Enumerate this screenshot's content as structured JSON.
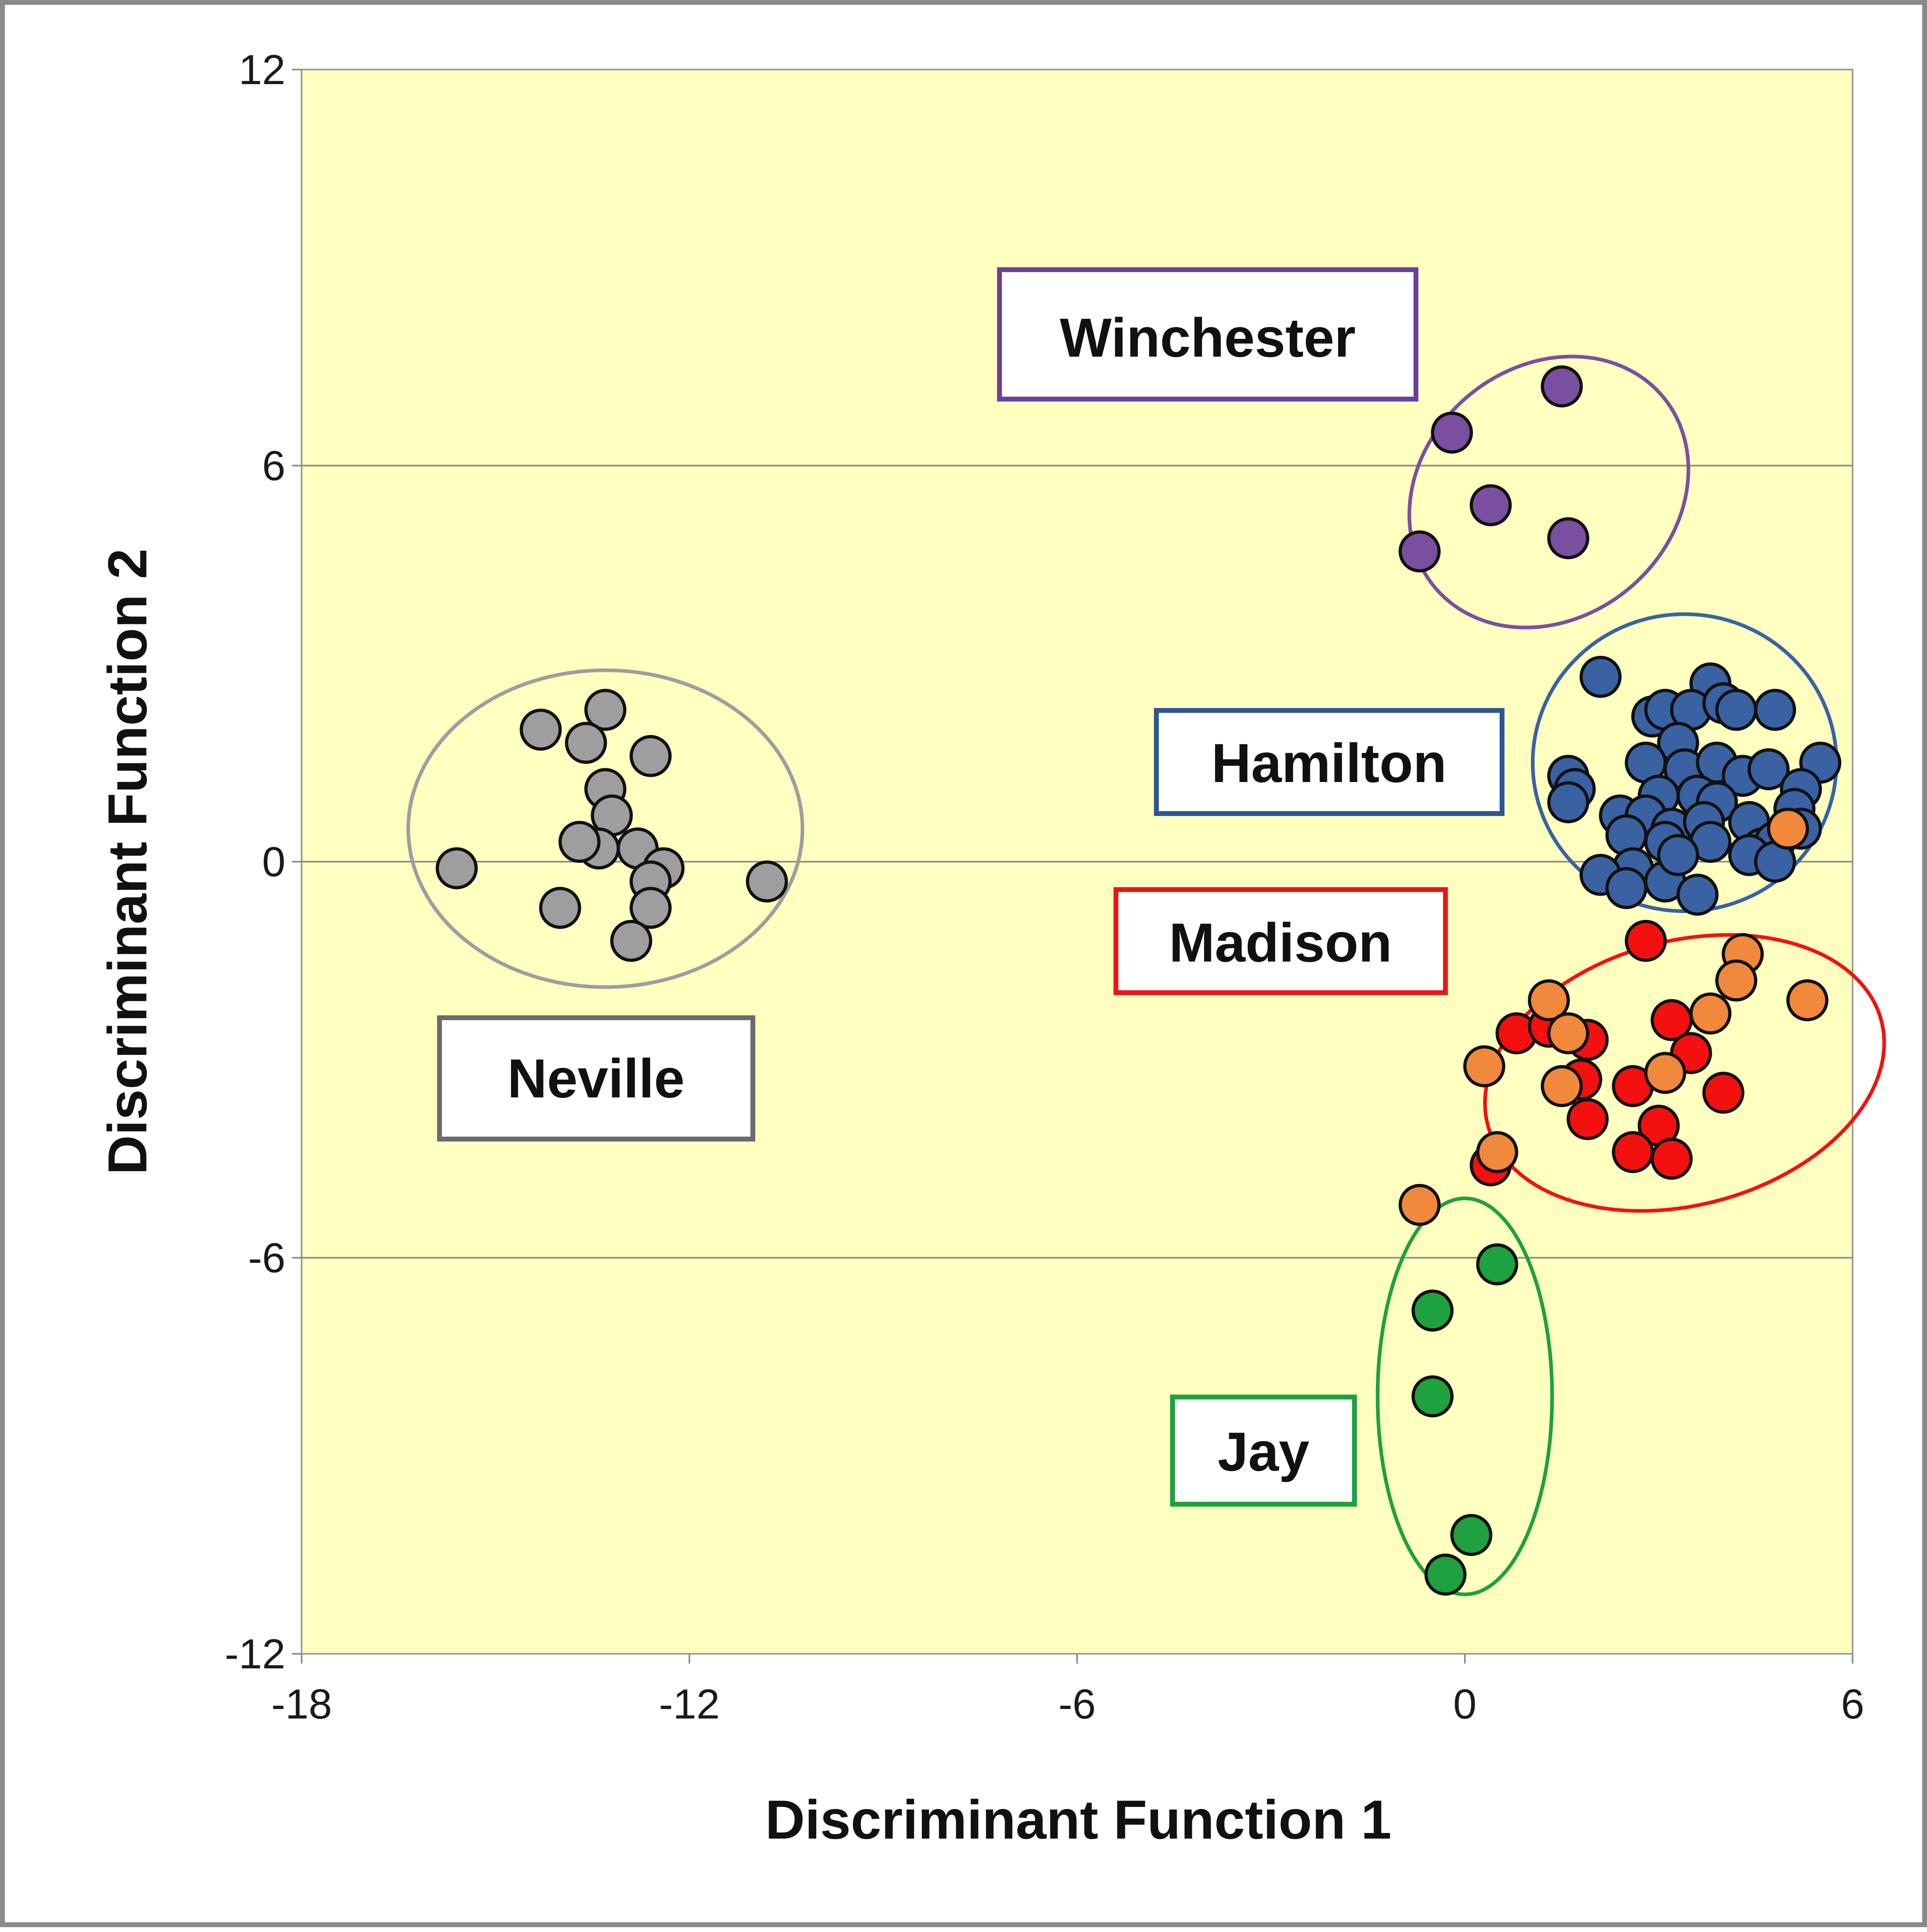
{
  "chart_data": {
    "type": "scatter",
    "title": "",
    "xlabel": "Discriminant Function 1",
    "ylabel": "Discriminant Function 2",
    "xlim": [
      -18,
      6
    ],
    "ylim": [
      -12,
      12
    ],
    "xticks": [
      -18,
      -12,
      -6,
      0,
      6
    ],
    "yticks": [
      12,
      6,
      0,
      -6,
      -12
    ],
    "xtick_labels": [
      "-18",
      "-12",
      "-6",
      "0",
      "6"
    ],
    "ytick_labels": [
      "12",
      "6",
      "0",
      "-6",
      "-12"
    ],
    "grid": "horizontal",
    "plot_background": "#ffffc0",
    "groups": [
      {
        "label": "Winchester",
        "color": "#7b4fa0",
        "ellipse": {
          "cx": 1.3,
          "cy": 5.6,
          "rx": 2.3,
          "ry": 1.9,
          "rotate": -40
        },
        "points": [
          [
            1.5,
            7.2
          ],
          [
            -0.2,
            6.5
          ],
          [
            0.4,
            5.4
          ],
          [
            1.6,
            4.9
          ],
          [
            -0.7,
            4.7
          ]
        ]
      },
      {
        "label": "Hamilton",
        "color": "#3a62a3",
        "ellipse": {
          "cx": 3.4,
          "cy": 1.5,
          "rx": 2.35,
          "ry": 2.25,
          "rotate": 0
        },
        "points": [
          [
            2.1,
            2.8
          ],
          [
            3.8,
            2.7
          ],
          [
            4.8,
            2.3
          ],
          [
            2.9,
            2.2
          ],
          [
            3.1,
            2.3
          ],
          [
            3.5,
            2.3
          ],
          [
            4.0,
            2.4
          ],
          [
            4.2,
            2.3
          ],
          [
            3.3,
            1.8
          ],
          [
            1.6,
            1.3
          ],
          [
            1.7,
            1.1
          ],
          [
            1.6,
            0.9
          ],
          [
            2.8,
            1.5
          ],
          [
            3.4,
            1.4
          ],
          [
            3.9,
            1.5
          ],
          [
            4.3,
            1.3
          ],
          [
            4.7,
            1.4
          ],
          [
            5.5,
            1.5
          ],
          [
            5.2,
            1.1
          ],
          [
            3.0,
            1.0
          ],
          [
            3.6,
            1.0
          ],
          [
            3.9,
            0.9
          ],
          [
            5.1,
            0.8
          ],
          [
            2.4,
            0.7
          ],
          [
            2.8,
            0.7
          ],
          [
            3.2,
            0.5
          ],
          [
            3.7,
            0.6
          ],
          [
            4.4,
            0.6
          ],
          [
            2.5,
            0.4
          ],
          [
            3.1,
            0.3
          ],
          [
            3.8,
            0.3
          ],
          [
            4.6,
            0.2
          ],
          [
            4.8,
            0.3
          ],
          [
            5.2,
            0.5
          ],
          [
            4.4,
            0.1
          ],
          [
            4.8,
            0.0
          ],
          [
            2.6,
            -0.1
          ],
          [
            2.1,
            -0.2
          ],
          [
            2.5,
            -0.4
          ],
          [
            3.1,
            -0.3
          ],
          [
            3.6,
            -0.5
          ],
          [
            3.3,
            0.1
          ]
        ]
      },
      {
        "label": "Madison",
        "color": "#f51010",
        "ellipse": {
          "cx": 3.4,
          "cy": -3.2,
          "rx": 3.15,
          "ry": 2.0,
          "rotate": -15
        },
        "points": [
          [
            2.8,
            -1.2
          ],
          [
            3.2,
            -2.4
          ],
          [
            0.8,
            -2.6
          ],
          [
            1.3,
            -2.5
          ],
          [
            1.9,
            -2.7
          ],
          [
            3.5,
            -2.9
          ],
          [
            1.8,
            -3.3
          ],
          [
            2.6,
            -3.4
          ],
          [
            4.0,
            -3.5
          ],
          [
            1.9,
            -3.9
          ],
          [
            3.0,
            -4.0
          ],
          [
            2.6,
            -4.4
          ],
          [
            3.2,
            -4.5
          ],
          [
            0.4,
            -4.6
          ]
        ]
      },
      {
        "label": "Madison (orange)",
        "color": "#f0893c",
        "points": [
          [
            5.0,
            0.5
          ],
          [
            4.3,
            -1.4
          ],
          [
            4.2,
            -1.8
          ],
          [
            1.3,
            -2.1
          ],
          [
            3.8,
            -2.3
          ],
          [
            5.3,
            -2.1
          ],
          [
            1.6,
            -2.6
          ],
          [
            0.3,
            -3.1
          ],
          [
            3.1,
            -3.2
          ],
          [
            1.5,
            -3.4
          ],
          [
            0.5,
            -4.4
          ],
          [
            -0.7,
            -5.2
          ]
        ]
      },
      {
        "label": "Jay",
        "color": "#1ea13f",
        "ellipse": {
          "cx": 0.0,
          "cy": -8.1,
          "rx": 1.35,
          "ry": 3.0,
          "rotate": 0
        },
        "points": [
          [
            0.5,
            -6.1
          ],
          [
            -0.5,
            -6.8
          ],
          [
            -0.5,
            -8.1
          ],
          [
            0.1,
            -10.2
          ],
          [
            -0.3,
            -10.8
          ]
        ]
      },
      {
        "label": "Neville",
        "color": "#9e9e9e",
        "ellipse": {
          "cx": -13.3,
          "cy": 0.5,
          "rx": 3.05,
          "ry": 2.4,
          "rotate": 0
        },
        "points": [
          [
            -13.3,
            2.3
          ],
          [
            -14.3,
            2.0
          ],
          [
            -13.6,
            1.8
          ],
          [
            -12.6,
            1.6
          ],
          [
            -13.3,
            1.1
          ],
          [
            -13.2,
            0.7
          ],
          [
            -12.8,
            0.2
          ],
          [
            -13.4,
            0.2
          ],
          [
            -13.7,
            0.3
          ],
          [
            -12.4,
            -0.1
          ],
          [
            -15.6,
            -0.1
          ],
          [
            -12.6,
            -0.3
          ],
          [
            -10.8,
            -0.3
          ],
          [
            -14.0,
            -0.7
          ],
          [
            -12.6,
            -0.7
          ],
          [
            -12.9,
            -1.2
          ]
        ]
      }
    ],
    "annotations": [
      "Winchester",
      "Hamilton",
      "Madison",
      "Neville",
      "Jay"
    ]
  }
}
